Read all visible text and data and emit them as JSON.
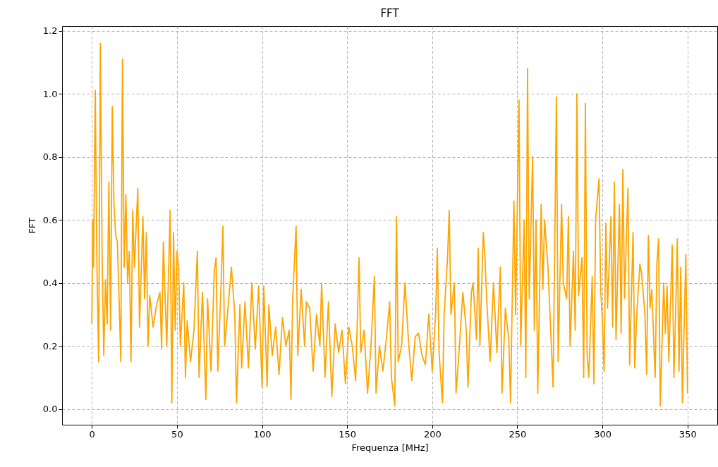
{
  "chart_data": {
    "type": "line",
    "title": "FFT",
    "xlabel": "Frequenza  [MHz]",
    "ylabel": "FFT",
    "x": [
      0,
      0.5,
      1,
      2,
      3,
      4,
      5,
      6,
      7,
      8,
      9,
      10,
      11,
      12,
      13,
      14,
      15,
      16,
      17,
      18,
      19,
      20,
      21,
      22,
      23,
      24,
      25,
      27,
      28,
      30,
      31,
      32,
      33,
      34,
      36,
      38,
      40,
      41,
      42,
      44,
      46,
      47,
      48,
      49,
      50,
      51,
      52,
      54,
      55,
      56,
      58,
      60,
      62,
      63,
      65,
      67,
      68,
      70,
      72,
      73,
      74,
      76,
      77,
      78,
      80,
      82,
      84,
      85,
      87,
      88,
      90,
      92,
      94,
      96,
      98,
      100,
      101,
      103,
      104,
      106,
      108,
      110,
      112,
      114,
      116,
      117,
      118,
      120,
      121,
      123,
      125,
      126,
      128,
      130,
      132,
      134,
      135,
      137,
      139,
      141,
      143,
      145,
      147,
      149,
      151,
      153,
      155,
      157,
      158,
      160,
      162,
      164,
      166,
      167,
      169,
      171,
      173,
      175,
      176,
      178,
      179,
      180,
      182,
      184,
      186,
      188,
      190,
      192,
      194,
      196,
      198,
      200,
      202,
      203,
      204,
      206,
      207,
      209,
      210,
      211,
      213,
      214,
      216,
      218,
      220,
      221,
      223,
      224,
      226,
      227,
      228,
      230,
      231,
      232,
      234,
      236,
      238,
      240,
      241,
      243,
      245,
      246,
      248,
      249,
      251,
      252,
      254,
      255,
      256,
      257,
      259,
      260,
      261,
      262,
      264,
      265,
      266,
      268,
      270,
      271,
      273,
      274,
      276,
      277,
      279,
      280,
      281,
      283,
      284,
      285,
      286,
      288,
      289,
      290,
      291,
      292,
      294,
      295,
      296,
      298,
      299,
      300,
      301,
      302,
      303,
      305,
      306,
      307,
      308,
      310,
      311,
      312,
      313,
      315,
      316,
      318,
      319,
      320,
      322,
      323,
      325,
      326,
      327,
      328,
      329,
      331,
      332,
      333,
      334,
      336,
      337,
      338,
      339,
      341,
      342,
      343,
      344,
      345,
      346,
      347,
      349,
      350
    ],
    "series": [
      {
        "color": "#ffa500",
        "values": [
          0.27,
          0.6,
          0.45,
          1.01,
          0.45,
          0.15,
          1.16,
          0.5,
          0.17,
          0.41,
          0.27,
          0.72,
          0.25,
          0.96,
          0.65,
          0.55,
          0.53,
          0.35,
          0.15,
          1.11,
          0.45,
          0.68,
          0.4,
          0.5,
          0.15,
          0.63,
          0.45,
          0.7,
          0.26,
          0.61,
          0.35,
          0.56,
          0.2,
          0.36,
          0.26,
          0.33,
          0.37,
          0.19,
          0.53,
          0.2,
          0.63,
          0.02,
          0.56,
          0.25,
          0.5,
          0.45,
          0.2,
          0.4,
          0.1,
          0.28,
          0.15,
          0.25,
          0.5,
          0.1,
          0.37,
          0.03,
          0.35,
          0.12,
          0.44,
          0.48,
          0.12,
          0.4,
          0.58,
          0.2,
          0.32,
          0.45,
          0.3,
          0.02,
          0.33,
          0.13,
          0.34,
          0.13,
          0.4,
          0.19,
          0.39,
          0.07,
          0.39,
          0.07,
          0.33,
          0.17,
          0.26,
          0.11,
          0.29,
          0.2,
          0.25,
          0.03,
          0.35,
          0.58,
          0.17,
          0.38,
          0.2,
          0.34,
          0.32,
          0.12,
          0.3,
          0.2,
          0.4,
          0.1,
          0.34,
          0.04,
          0.27,
          0.18,
          0.25,
          0.08,
          0.26,
          0.2,
          0.09,
          0.48,
          0.18,
          0.25,
          0.05,
          0.2,
          0.42,
          0.05,
          0.2,
          0.12,
          0.22,
          0.34,
          0.1,
          0.01,
          0.61,
          0.15,
          0.2,
          0.4,
          0.22,
          0.09,
          0.23,
          0.24,
          0.17,
          0.14,
          0.3,
          0.12,
          0.3,
          0.51,
          0.18,
          0.02,
          0.3,
          0.48,
          0.63,
          0.3,
          0.4,
          0.05,
          0.2,
          0.37,
          0.25,
          0.07,
          0.37,
          0.4,
          0.22,
          0.51,
          0.2,
          0.56,
          0.48,
          0.35,
          0.15,
          0.4,
          0.18,
          0.45,
          0.05,
          0.32,
          0.22,
          0.02,
          0.66,
          0.3,
          0.98,
          0.2,
          0.6,
          0.1,
          1.08,
          0.35,
          0.8,
          0.25,
          0.6,
          0.05,
          0.65,
          0.38,
          0.6,
          0.45,
          0.2,
          0.07,
          0.99,
          0.15,
          0.65,
          0.4,
          0.35,
          0.61,
          0.2,
          0.5,
          0.25,
          1.0,
          0.36,
          0.48,
          0.1,
          0.97,
          0.18,
          0.1,
          0.42,
          0.08,
          0.6,
          0.73,
          0.38,
          0.28,
          0.12,
          0.59,
          0.32,
          0.61,
          0.26,
          0.72,
          0.22,
          0.65,
          0.24,
          0.76,
          0.35,
          0.7,
          0.14,
          0.56,
          0.13,
          0.28,
          0.46,
          0.43,
          0.3,
          0.11,
          0.55,
          0.32,
          0.38,
          0.1,
          0.46,
          0.54,
          0.01,
          0.4,
          0.24,
          0.39,
          0.15,
          0.52,
          0.1,
          0.3,
          0.54,
          0.12,
          0.45,
          0.02,
          0.49,
          0.05
        ]
      }
    ],
    "xlim": [
      -17.5,
      367.5
    ],
    "ylim": [
      -0.05,
      1.215
    ],
    "xticks": [
      0,
      50,
      100,
      150,
      200,
      250,
      300,
      350
    ],
    "yticks": [
      {
        "value": 0,
        "label": "0.0"
      },
      {
        "value": 0.2,
        "label": "0.2"
      },
      {
        "value": 0.4,
        "label": "0.4"
      },
      {
        "value": 0.6,
        "label": "0.6"
      },
      {
        "value": 0.8,
        "label": "0.8"
      },
      {
        "value": 1.0,
        "label": "1.0"
      },
      {
        "value": 1.2,
        "label": "1.2"
      }
    ],
    "grid": true,
    "line_style": "solid",
    "marker": "none"
  }
}
